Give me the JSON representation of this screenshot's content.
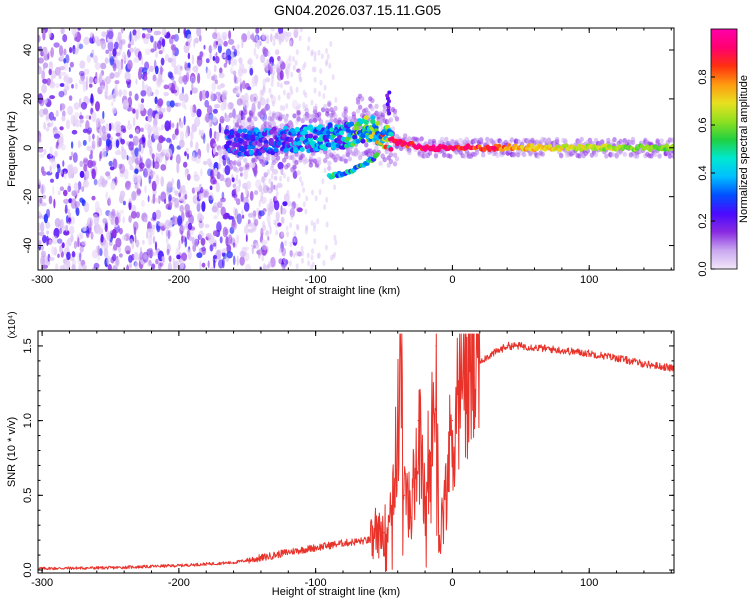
{
  "page_title": "GN04.2026.037.15.11.G05",
  "colors": {
    "line": "#e8322a",
    "axis": "#000000"
  },
  "chart_data": [
    {
      "type": "heatmap",
      "title": "GN04.2026.037.15.11.G05",
      "xlabel": "Height of straight line (km)",
      "ylabel": "Frequency (Hz)",
      "xlim": [
        -303,
        162
      ],
      "ylim": [
        -50,
        49
      ],
      "xticks": [
        -300,
        -200,
        -100,
        0,
        100
      ],
      "xtick_labels": [
        "-300",
        "-200",
        "-100",
        "0",
        "100"
      ],
      "yticks": [
        40,
        20,
        0,
        -20,
        -40
      ],
      "ytick_labels": [
        "40",
        "20",
        "0",
        "-20",
        "-40"
      ],
      "colorbar": {
        "label": "Normalized spectral amplitude",
        "range": [
          0,
          1
        ],
        "ticks": [
          0.0,
          0.2,
          0.4,
          0.6,
          0.8
        ],
        "tick_labels": [
          "0.0",
          "0.2",
          "0.4",
          "0.6",
          "0.8"
        ],
        "colormap": [
          "#f3e6fa",
          "#c9a8f0",
          "#8a2be2",
          "#4a0aff",
          "#0050ff",
          "#00bfff",
          "#00e8d0",
          "#20d040",
          "#90e020",
          "#e8e020",
          "#ff9a10",
          "#ff3010",
          "#ff0070",
          "#ff00aa"
        ]
      },
      "features": {
        "noise_region_x": [
          -303,
          -140
        ],
        "main_ridge": {
          "x": [
            -160,
            -120,
            -80,
            -60,
            -40,
            -20,
            0,
            50,
            100,
            162
          ],
          "freq": [
            2,
            3,
            5,
            8,
            2,
            0,
            0,
            0,
            0,
            0
          ],
          "amplitude": [
            0.3,
            0.35,
            0.45,
            0.6,
            0.85,
            0.95,
            0.9,
            0.75,
            0.65,
            0.6
          ]
        },
        "lower_branch": {
          "x": [
            -90,
            -75,
            -65,
            -55
          ],
          "freq": [
            -12,
            -10,
            -7,
            -3
          ]
        },
        "upper_spot": {
          "x": -47,
          "freq": 19
        }
      }
    },
    {
      "type": "line",
      "xlabel": "Height of straight line (km)",
      "ylabel": "SNR (10 * v/v)",
      "scale_label": "(x10⁴)",
      "xlim": [
        -303,
        162
      ],
      "ylim": [
        -0.02,
        1.6
      ],
      "xticks": [
        -300,
        -200,
        -100,
        0,
        100
      ],
      "xtick_labels": [
        "-300",
        "-200",
        "-100",
        "0",
        "100"
      ],
      "yticks": [
        0.0,
        0.5,
        1.0,
        1.5
      ],
      "ytick_labels": [
        "0.0",
        "0.5",
        "1.0",
        "1.5"
      ],
      "series": [
        {
          "color": "#e8322a",
          "x": [
            -303,
            -250,
            -200,
            -160,
            -140,
            -120,
            -100,
            -80,
            -60,
            -50,
            -45,
            -40,
            -38,
            -35,
            -30,
            -25,
            -20,
            -15,
            -12,
            -10,
            -5,
            0,
            5,
            10,
            15,
            20,
            30,
            40,
            50,
            60,
            80,
            100,
            120,
            140,
            162
          ],
          "y": [
            0.01,
            0.015,
            0.03,
            0.05,
            0.08,
            0.12,
            0.15,
            0.18,
            0.2,
            0.25,
            0.4,
            0.9,
            1.55,
            0.5,
            0.35,
            1.0,
            0.4,
            0.7,
            1.5,
            0.2,
            0.5,
            1.0,
            1.2,
            1.3,
            1.35,
            1.4,
            1.45,
            1.5,
            1.5,
            1.49,
            1.47,
            1.45,
            1.42,
            1.38,
            1.35
          ]
        }
      ]
    }
  ]
}
